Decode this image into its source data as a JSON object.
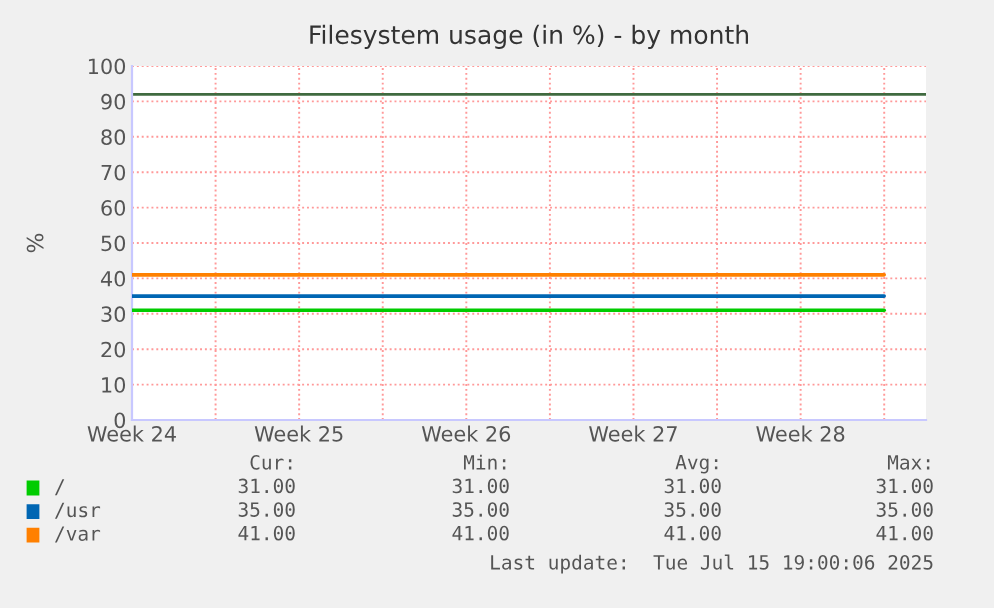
{
  "chart_data": {
    "type": "line",
    "title": "Filesystem usage (in %) - by month",
    "ylabel": "%",
    "categories": [
      "Week 24",
      null,
      "Week 25",
      null,
      "Week 26",
      null,
      "Week 27",
      null,
      "Week 28",
      null
    ],
    "series": [
      {
        "name": "/",
        "color": "#00cc00",
        "values": [
          31,
          31,
          31,
          31,
          31,
          31,
          31,
          31,
          31,
          31
        ]
      },
      {
        "name": "/usr",
        "color": "#0066b3",
        "values": [
          35,
          35,
          35,
          35,
          35,
          35,
          35,
          35,
          35,
          35
        ]
      },
      {
        "name": "/var",
        "color": "#ff8000",
        "values": [
          41,
          41,
          41,
          41,
          41,
          41,
          41,
          41,
          41,
          41
        ]
      }
    ],
    "ylim": [
      0,
      100
    ],
    "yticks": [
      0,
      10,
      20,
      30,
      40,
      50,
      60,
      70,
      80,
      90,
      100
    ],
    "ref_lines": [
      {
        "axis": "y",
        "value": 92,
        "color": "#3f6a3f"
      }
    ],
    "grid": true,
    "legend": "bottom",
    "line_style": "solid",
    "marker": "none",
    "annotations": [
      "Cur:",
      "Min:",
      "Avg:",
      "Max:",
      "31.00",
      "31.00",
      "31.00",
      "31.00",
      "35.00",
      "35.00",
      "35.00",
      "35.00",
      "41.00",
      "41.00",
      "41.00",
      "41.00",
      "Last update:  Tue Jul 15 19:00:06 2025"
    ]
  }
}
